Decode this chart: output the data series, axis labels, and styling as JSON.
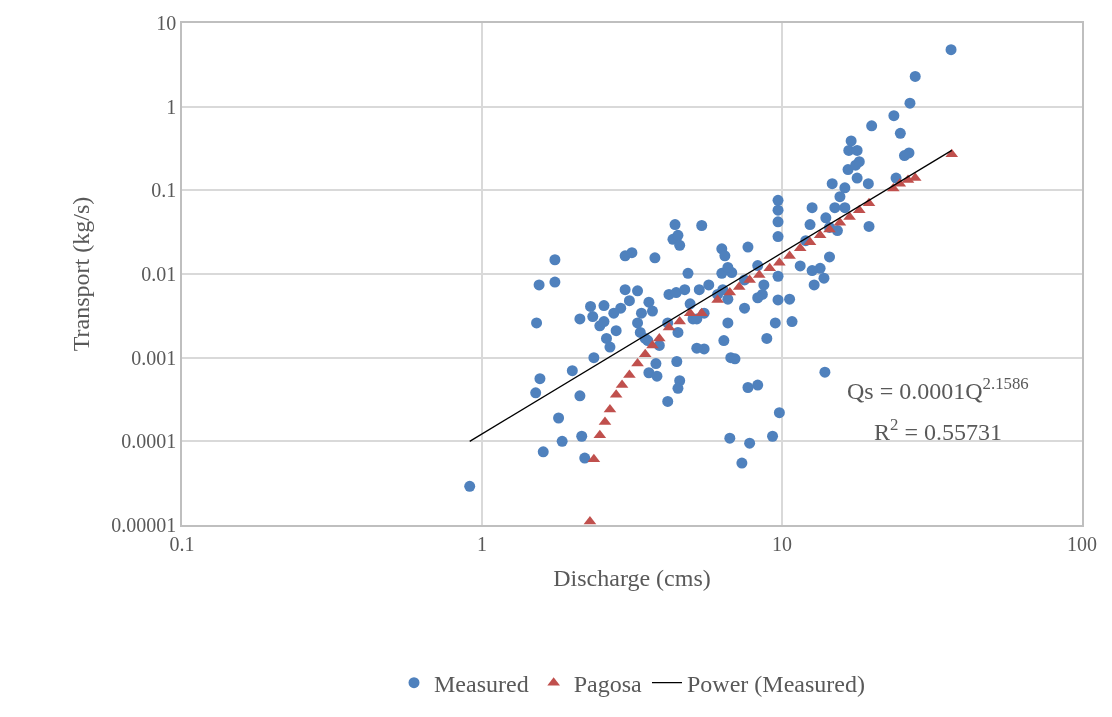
{
  "chart_data": {
    "type": "scatter",
    "xlabel": "Discharge (cms)",
    "ylabel": "Transport (kg/s)",
    "log": "xy",
    "grid": true,
    "legend": "bottom",
    "xlim": [
      0.1,
      100
    ],
    "xticks": [
      0.1,
      1,
      10,
      100
    ],
    "ylim": [
      1e-05,
      10
    ],
    "yticks": [
      {
        "value": 1e-05,
        "label": "0.00001"
      },
      0.0001,
      0.001,
      0.01,
      0.1,
      1,
      10
    ],
    "annotations": [
      "Qs = 0.0001Q$^{2.1586}$",
      "R$^{2}$ = 0.55731"
    ],
    "series": [
      {
        "name": "Measured",
        "marker": "circle",
        "color": "#4f81bd",
        "x": [
          0.91,
          1.51,
          1.56,
          1.52,
          1.55,
          1.75,
          1.75,
          1.6,
          1.8,
          1.85,
          2.0,
          2.12,
          2.15,
          2.2,
          2.12,
          2.3,
          2.34,
          2.36,
          2.47,
          2.55,
          2.55,
          2.6,
          2.67,
          2.8,
          3.0,
          3.1,
          3.0,
          3.16,
          3.3,
          3.37,
          3.4,
          3.57,
          3.6,
          3.7,
          3.77,
          3.8,
          3.6,
          3.83,
          4.16,
          4.2,
          4.16,
          4.4,
          4.33,
          4.56,
          4.5,
          4.44,
          4.5,
          4.46,
          4.56,
          4.5,
          4.74,
          4.86,
          4.94,
          5.05,
          5.2,
          5.3,
          5.4,
          5.5,
          5.2,
          6.3,
          6.45,
          6.3,
          6.8,
          6.6,
          6.35,
          6.1,
          6.6,
          6.6,
          6.4,
          6.75,
          6.97,
          6.7,
          7.35,
          7.7,
          8.3,
          7.8,
          9.3,
          9.8,
          8.9,
          8.6,
          8.3,
          9.5,
          9.7,
          9.7,
          9.7,
          9.7,
          9.7,
          9.7,
          10.6,
          10.8,
          11.5,
          12.0,
          12.4,
          12.6,
          13.4,
          13.8,
          13.9,
          14.4,
          14.4,
          15.0,
          14.7,
          15.6,
          16.2,
          16.6,
          17.0,
          16.7,
          17.8,
          17.6,
          18.1,
          17.8,
          19.4,
          19.5,
          19.9,
          23.6,
          24.8,
          26.5,
          26.7,
          27.8,
          36.6,
          24.0,
          25.6,
          14.0,
          15.3,
          16.2,
          12.8,
          12.6,
          8.7,
          7.5,
          7.5,
          8.3,
          7.7,
          5.7,
          5.5,
          2.9,
          3.5,
          3.9,
          3.3,
          2.75
        ],
        "values": [
          2.9e-05,
          0.00038,
          0.00056,
          0.0026,
          0.0074,
          0.008,
          0.0148,
          7.5e-05,
          0.00019,
          0.0001,
          0.0007,
          0.00035,
          0.000115,
          6.3e-05,
          0.0029,
          0.0041,
          0.0031,
          0.001,
          0.0024,
          0.0042,
          0.0027,
          0.0017,
          0.00134,
          0.0021,
          0.0065,
          0.0048,
          0.0165,
          0.018,
          0.0063,
          0.002,
          0.0034,
          0.0016,
          0.0046,
          0.0036,
          0.0156,
          0.00085,
          0.00066,
          0.0006,
          0.0003,
          0.0057,
          0.0026,
          0.039,
          0.026,
          0.022,
          0.029,
          0.006,
          0.002,
          0.0009,
          0.00053,
          0.00043,
          0.0065,
          0.0102,
          0.0044,
          0.0029,
          0.0029,
          0.0065,
          0.038,
          0.00127,
          0.0013,
          0.02,
          0.0165,
          0.0102,
          0.0104,
          0.012,
          0.0065,
          0.0057,
          0.005,
          0.0026,
          0.0016,
          0.001,
          0.00097,
          0.000109,
          5.5e-05,
          0.00044,
          0.00047,
          9.5e-05,
          0.000115,
          0.00022,
          0.0017,
          0.0057,
          0.0052,
          0.0026,
          0.0049,
          0.0094,
          0.028,
          0.042,
          0.058,
          0.076,
          0.005,
          0.0027,
          0.0125,
          0.025,
          0.039,
          0.062,
          0.0117,
          0.0089,
          0.00067,
          0.016,
          0.036,
          0.062,
          0.12,
          0.084,
          0.107,
          0.177,
          0.39,
          0.3,
          0.3,
          0.2,
          0.22,
          0.14,
          0.12,
          0.037,
          0.59,
          0.78,
          0.48,
          0.28,
          1.1,
          2.3,
          4.8,
          0.14,
          0.26,
          0.047,
          0.033,
          0.062,
          0.0074,
          0.011,
          0.0074,
          0.0039,
          0.0085,
          0.0126,
          0.021,
          0.0074,
          0.0034,
          0.0039,
          0.0017,
          0.0014,
          0.0026,
          0.0034
        ]
      },
      {
        "name": "Pagosa",
        "marker": "triangle",
        "color": "#c0504d",
        "x": [
          2.29,
          2.36,
          2.47,
          2.57,
          2.67,
          2.8,
          2.93,
          3.1,
          3.3,
          3.5,
          3.7,
          3.9,
          4.2,
          4.56,
          4.94,
          5.4,
          6.1,
          6.7,
          7.2,
          7.8,
          8.4,
          9.1,
          9.8,
          10.6,
          11.5,
          12.4,
          13.4,
          14.4,
          15.6,
          16.8,
          18.1,
          19.5,
          23.5,
          24.7,
          26.3,
          27.8,
          36.8
        ],
        "values": [
          1.1e-05,
          6.1e-05,
          0.000118,
          0.00017,
          0.00024,
          0.00036,
          0.00047,
          0.00062,
          0.00085,
          0.0011,
          0.0014,
          0.0017,
          0.0023,
          0.0027,
          0.0034,
          0.0034,
          0.0049,
          0.006,
          0.007,
          0.0085,
          0.0097,
          0.0117,
          0.0136,
          0.0164,
          0.0203,
          0.024,
          0.029,
          0.034,
          0.041,
          0.048,
          0.058,
          0.07,
          0.105,
          0.12,
          0.133,
          0.14,
          0.27
        ]
      },
      {
        "name": "Power (Measured)",
        "type": "line",
        "marker": "none",
        "line_style": "solid",
        "color": "#000000",
        "x": [
          0.91,
          36.8
        ],
        "values": [
          0.0001,
          0.3
        ]
      }
    ]
  }
}
